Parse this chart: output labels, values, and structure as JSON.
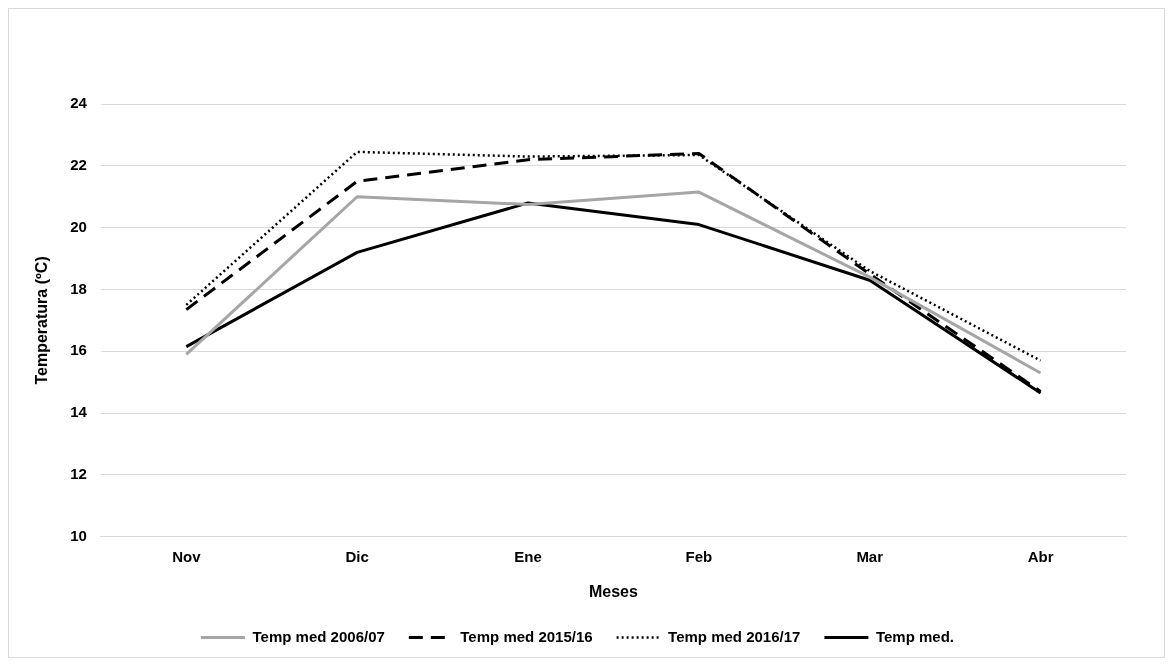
{
  "chart_data": {
    "type": "line",
    "xlabel": "Meses",
    "ylabel": "Temperatura (ºC)",
    "categories": [
      "Nov",
      "Dic",
      "Ene",
      "Feb",
      "Mar",
      "Abr"
    ],
    "series": [
      {
        "name": "Temp med 2006/07",
        "color": "#a6a6a6",
        "line_style": "solid",
        "values": [
          15.9,
          21.0,
          20.75,
          21.15,
          18.4,
          15.3
        ]
      },
      {
        "name": "Temp med 2015/16",
        "color": "#000000",
        "line_style": "dashed",
        "values": [
          17.35,
          21.5,
          22.2,
          22.4,
          18.5,
          14.7
        ]
      },
      {
        "name": "Temp med 2016/17",
        "color": "#000000",
        "line_style": "dotted",
        "values": [
          17.5,
          22.45,
          22.3,
          22.35,
          18.6,
          15.7
        ]
      },
      {
        "name": "Temp med.",
        "color": "#000000",
        "line_style": "solid",
        "values": [
          16.15,
          19.2,
          20.8,
          20.1,
          18.3,
          14.65
        ]
      }
    ],
    "ylim": [
      10,
      24
    ],
    "yticks": [
      10,
      12,
      14,
      16,
      18,
      20,
      22,
      24
    ],
    "grid": "y",
    "legend": "bottom",
    "marker": "none"
  }
}
